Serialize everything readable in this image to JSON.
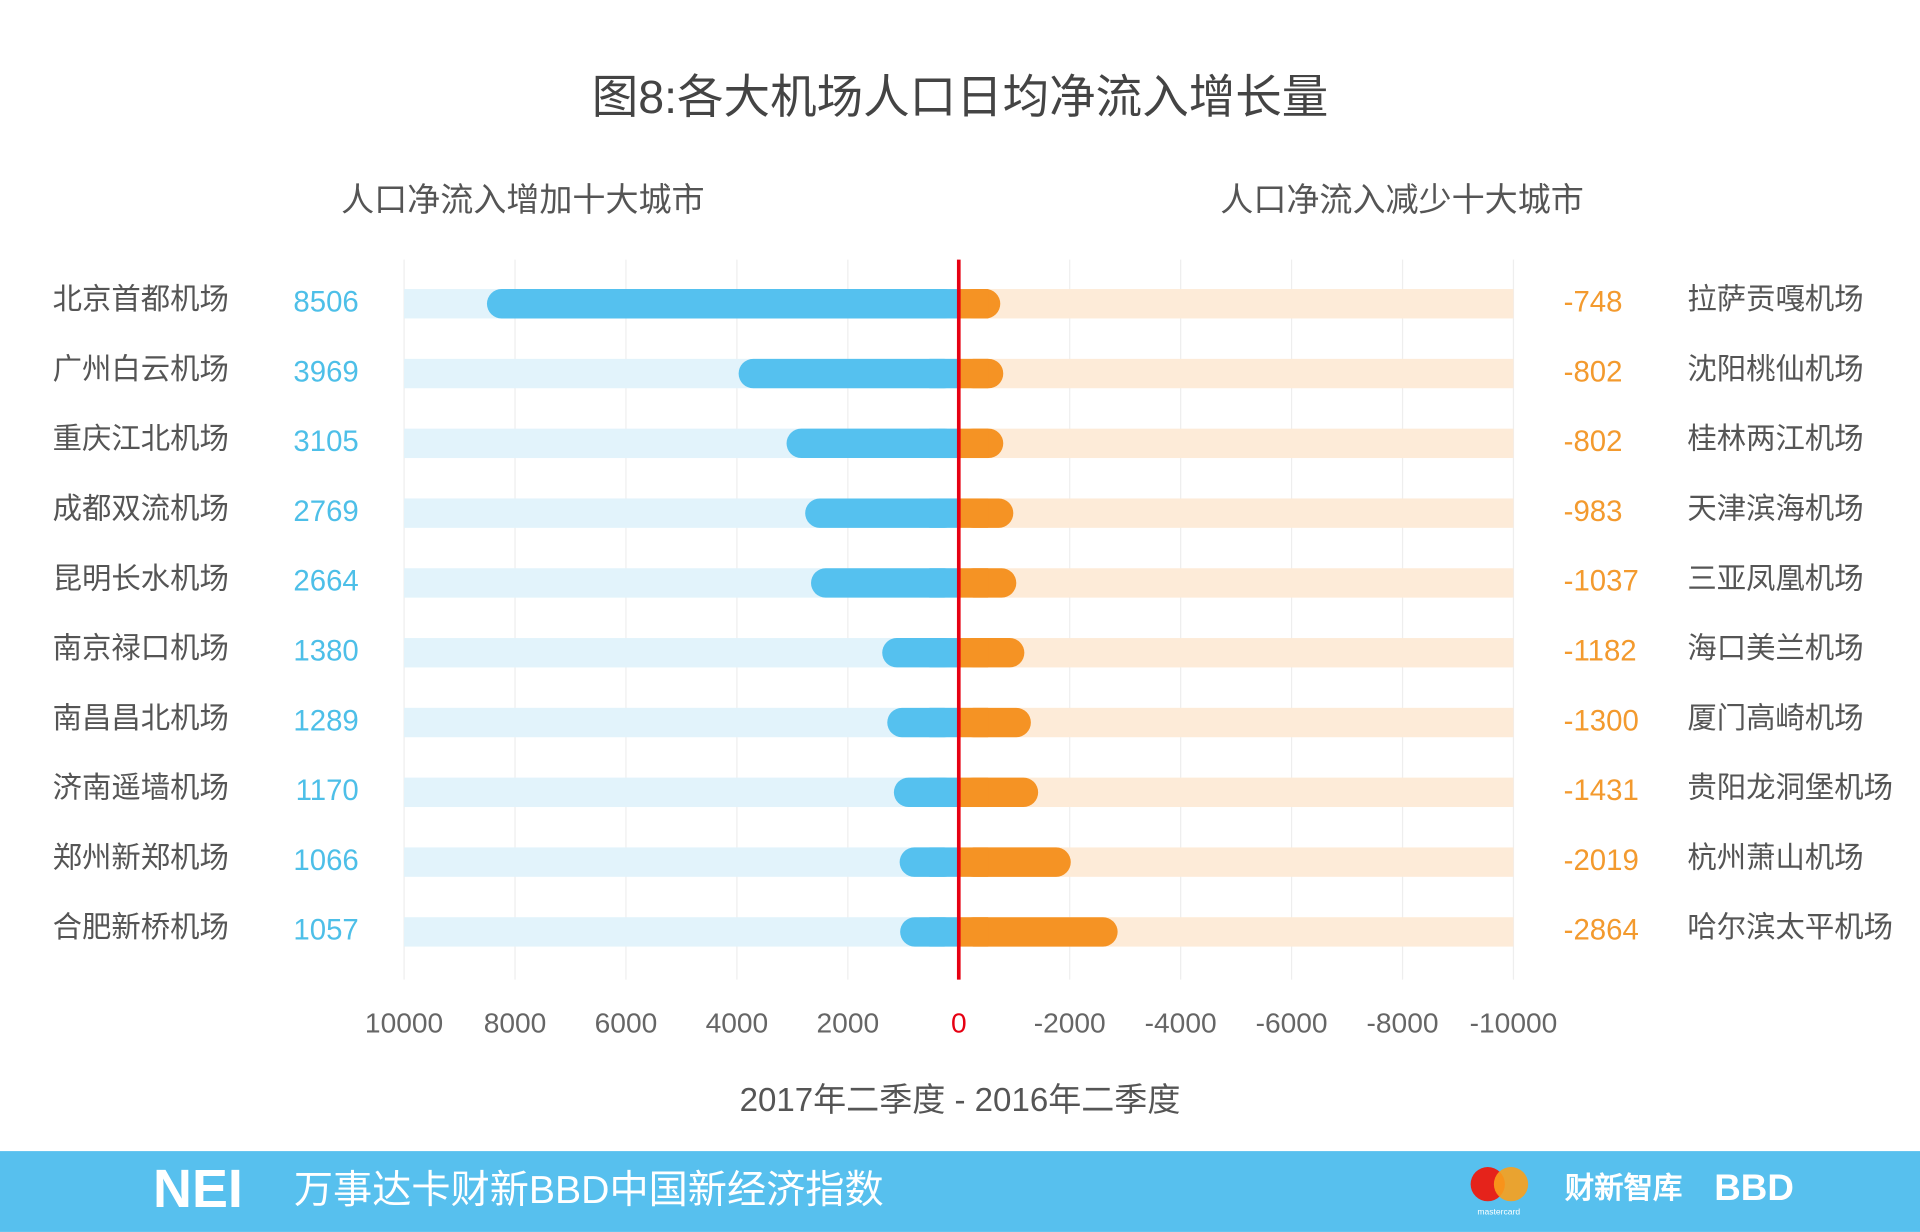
{
  "chart_data": {
    "type": "diverging_bar",
    "title": "图8:各大机场人口日均净流入增长量",
    "x_label": "2017年二季度 - 2016年二季度",
    "xlim": [
      10000,
      -10000
    ],
    "xticks": [
      10000,
      8000,
      6000,
      4000,
      2000,
      0,
      -2000,
      -4000,
      -6000,
      -8000,
      -10000
    ],
    "grid": true,
    "series": [
      {
        "name": "人口净流入增加十大城市",
        "color": "#55c1ef",
        "track_color": "#e2f3fb",
        "value_color": "#4dbfe8",
        "categories": [
          "北京首都机场",
          "广州白云机场",
          "重庆江北机场",
          "成都双流机场",
          "昆明长水机场",
          "南京禄口机场",
          "南昌昌北机场",
          "济南遥墙机场",
          "郑州新郑机场",
          "合肥新桥机场"
        ],
        "values": [
          8506,
          3969,
          3105,
          2769,
          2664,
          1380,
          1289,
          1170,
          1066,
          1057
        ]
      },
      {
        "name": "人口净流入减少十大城市",
        "color": "#f59324",
        "track_color": "#fdebd8",
        "value_color": "#f39a2e",
        "categories": [
          "拉萨贡嘎机场",
          "沈阳桃仙机场",
          "桂林两江机场",
          "天津滨海机场",
          "三亚凤凰机场",
          "海口美兰机场",
          "厦门高崎机场",
          "贵阳龙洞堡机场",
          "杭州萧山机场",
          "哈尔滨太平机场"
        ],
        "values": [
          -748,
          -802,
          -802,
          -983,
          -1037,
          -1182,
          -1300,
          -1431,
          -2019,
          -2864
        ]
      }
    ]
  },
  "footer": {
    "logo": "NEI",
    "title": "万事达卡财新BBD中国新经济指数",
    "partners": [
      "mastercard",
      "财新智库",
      "BBD"
    ]
  }
}
